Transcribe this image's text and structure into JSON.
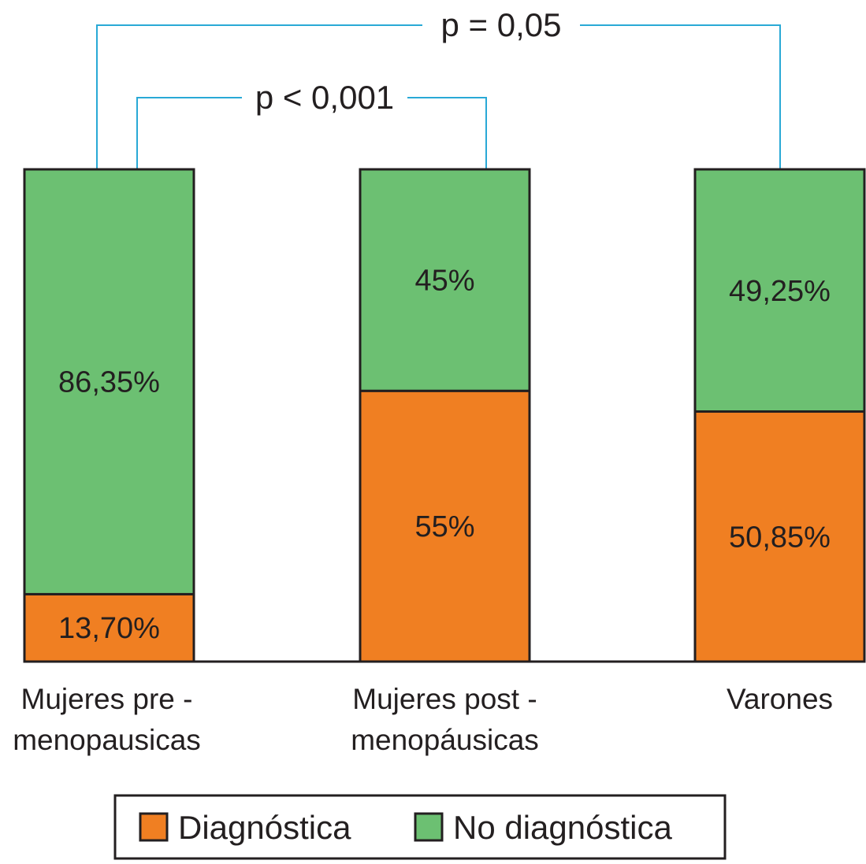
{
  "chart_data": {
    "type": "bar",
    "stacked": true,
    "categories": [
      "Mujeres pre - menopausicas",
      "Mujeres post - menopáusicas",
      "Varones"
    ],
    "category_lines": [
      [
        "Mujeres pre -",
        "menopausicas"
      ],
      [
        "Mujeres post -",
        "menopáusicas"
      ],
      [
        "Varones"
      ]
    ],
    "series": [
      {
        "name": "Diagnóstica",
        "values": [
          13.7,
          55,
          50.85
        ],
        "labels": [
          "13,70%",
          "55%",
          "50,85%"
        ],
        "color": "#f07f22"
      },
      {
        "name": "No diagnóstica",
        "values": [
          86.35,
          45,
          49.25
        ],
        "labels": [
          "86,35%",
          "45%",
          "49,25%"
        ],
        "color": "#6cc072"
      }
    ],
    "ylim": [
      0,
      100
    ],
    "grid": false,
    "legend": "bottom",
    "annotations": [
      {
        "text": "p = 0,05",
        "between": [
          "Mujeres pre - menopausicas",
          "Varones"
        ]
      },
      {
        "text": "p < 0,001",
        "between": [
          "Mujeres pre - menopausicas",
          "Mujeres post - menopáusicas"
        ]
      }
    ],
    "bracket_color": "#29a9d6"
  }
}
